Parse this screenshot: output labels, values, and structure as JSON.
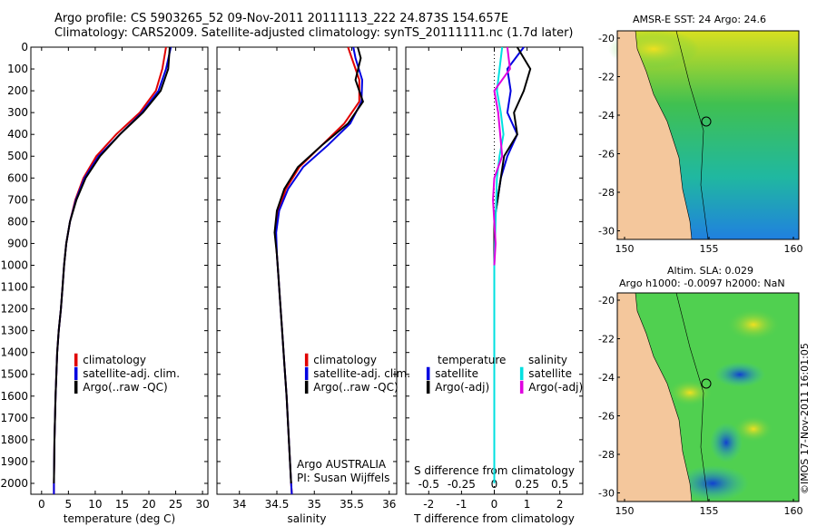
{
  "header": {
    "line1": "Argo profile: CS 5903265_52 09-Nov-2011 20111113_222 24.873S 154.657E",
    "line2": "Climatology: CARS2009. Satellite-adjusted climatology: synTS_20111111.nc (1.7d later)"
  },
  "colors": {
    "climatology": "#e00000",
    "satellite": "#0000e0",
    "argo": "#000000",
    "sal_sat": "#00e0e0",
    "sal_argo": "#e000e0",
    "land": "#f4c79c"
  },
  "legend_main": [
    "climatology",
    "satellite-adj. clim.",
    "Argo(..raw -QC)"
  ],
  "diff_legend": {
    "temperature": "temperature",
    "salinity": "salinity",
    "satellite": "satellite",
    "argo": "Argo(-adj)"
  },
  "credit": {
    "line1": "Argo AUSTRALIA",
    "line2": "PI: Susan Wijffels"
  },
  "maps": {
    "sst_title": "AMSR-E SST: 24 Argo: 24.6",
    "sla_title1": "Altim. SLA: 0.029",
    "sla_title2": "Argo h1000: -0.0097 h2000: NaN",
    "lat_ticks": [
      "-20",
      "-22",
      "-24",
      "-26",
      "-28",
      "-30"
    ],
    "lon_ticks": [
      "150",
      "155",
      "160"
    ]
  },
  "imos": "©IMOS 17-Nov-2011 16:01:05",
  "chart_data": [
    {
      "type": "line",
      "name": "temperature",
      "xlabel": "temperature (deg C)",
      "ylabel": "",
      "xlim": [
        -2,
        31
      ],
      "ylim": [
        2050,
        0
      ],
      "xticks": [
        "0",
        "5",
        "10",
        "15",
        "20",
        "25",
        "30"
      ],
      "yticks": [
        "0",
        "100",
        "200",
        "300",
        "400",
        "500",
        "600",
        "700",
        "800",
        "900",
        "1000",
        "1100",
        "1200",
        "1300",
        "1400",
        "1500",
        "1600",
        "1700",
        "1800",
        "1900",
        "2000"
      ],
      "series": [
        {
          "name": "climatology",
          "x": [
            23.2,
            22.5,
            21.3,
            18.3,
            13.9,
            10.2,
            7.8,
            6.3,
            5.3,
            4.6,
            4.2,
            3.9,
            3.6,
            3.2,
            2.9,
            2.6,
            2.4,
            2.3,
            2.3
          ],
          "y": [
            0,
            100,
            200,
            300,
            400,
            500,
            600,
            700,
            800,
            900,
            1000,
            1100,
            1200,
            1300,
            1400,
            1600,
            1800,
            2000,
            2050
          ]
        },
        {
          "name": "satellite-adj. clim.",
          "x": [
            24.1,
            23.2,
            21.8,
            18.7,
            14.6,
            10.6,
            8.0,
            6.4,
            5.3,
            4.6,
            4.2,
            3.9,
            3.6,
            3.2,
            2.9,
            2.6,
            2.4,
            2.3,
            2.3
          ],
          "y": [
            0,
            100,
            200,
            300,
            400,
            500,
            600,
            700,
            800,
            900,
            1000,
            1100,
            1200,
            1300,
            1400,
            1600,
            1800,
            2000,
            2050
          ]
        },
        {
          "name": "Argo(..raw -QC)",
          "x": [
            23.9,
            23.6,
            22.2,
            18.9,
            14.6,
            10.9,
            8.2,
            6.5,
            5.3,
            4.6,
            4.2,
            3.9,
            3.6,
            3.2,
            2.9,
            2.6,
            2.4,
            2.3
          ],
          "y": [
            0,
            100,
            200,
            300,
            400,
            500,
            600,
            700,
            800,
            900,
            1000,
            1100,
            1200,
            1300,
            1400,
            1600,
            1800,
            2000
          ]
        }
      ]
    },
    {
      "type": "line",
      "name": "salinity",
      "xlabel": "salinity",
      "ylabel": "",
      "xlim": [
        33.7,
        36.1
      ],
      "ylim": [
        2050,
        0
      ],
      "xticks": [
        "34",
        "34.5",
        "35",
        "35.5",
        "36"
      ],
      "series": [
        {
          "name": "climatology",
          "x": [
            35.45,
            35.5,
            35.6,
            35.6,
            35.4,
            35.1,
            34.8,
            34.62,
            34.52,
            34.48,
            34.5,
            34.52,
            34.54,
            34.57,
            34.6,
            34.63,
            34.66,
            34.69,
            34.7
          ],
          "y": [
            0,
            50,
            150,
            250,
            350,
            450,
            550,
            650,
            750,
            850,
            950,
            1050,
            1150,
            1300,
            1450,
            1600,
            1800,
            2000,
            2050
          ]
        },
        {
          "name": "satellite-adj. clim.",
          "x": [
            35.52,
            35.55,
            35.64,
            35.63,
            35.48,
            35.18,
            34.85,
            34.65,
            34.53,
            34.49,
            34.5,
            34.52,
            34.54,
            34.57,
            34.6,
            34.63,
            34.66,
            34.69,
            34.7
          ],
          "y": [
            0,
            50,
            150,
            250,
            350,
            450,
            550,
            650,
            750,
            850,
            950,
            1050,
            1150,
            1300,
            1450,
            1600,
            1800,
            2000,
            2050
          ]
        },
        {
          "name": "Argo(..raw -QC)",
          "x": [
            35.58,
            35.62,
            35.55,
            35.65,
            35.45,
            35.1,
            34.78,
            34.6,
            34.5,
            34.47,
            34.5,
            34.52,
            34.54,
            34.57,
            34.6,
            34.63,
            34.66,
            34.69
          ],
          "y": [
            0,
            50,
            150,
            250,
            350,
            450,
            550,
            650,
            750,
            850,
            950,
            1050,
            1150,
            1300,
            1450,
            1600,
            1800,
            2000
          ]
        }
      ]
    },
    {
      "type": "line",
      "name": "difference",
      "xlabel": "T difference from climatology",
      "xlabel_top": "S difference from climatology",
      "xlim": [
        -2.7,
        2.7
      ],
      "ylim": [
        2050,
        0
      ],
      "xticks": [
        "-2",
        "-1",
        "0",
        "1",
        "2"
      ],
      "xticks_top": [
        "-0.5",
        "-0.25",
        "0",
        "0.25",
        "0.5"
      ],
      "series": [
        {
          "name": "temperature satellite",
          "x": [
            0.9,
            0.4,
            0.5,
            0.4,
            0.7,
            0.4,
            0.2,
            0.1,
            0.0,
            0.0,
            0.0
          ],
          "y": [
            0,
            100,
            200,
            300,
            400,
            500,
            600,
            700,
            800,
            1000,
            2000
          ]
        },
        {
          "name": "temperature Argo(-adj)",
          "x": [
            0.7,
            1.1,
            0.9,
            0.6,
            0.7,
            0.3,
            0.2,
            0.1,
            0.0,
            0.0,
            0.0
          ],
          "y": [
            0,
            100,
            200,
            300,
            400,
            500,
            600,
            700,
            800,
            1000,
            2000
          ]
        },
        {
          "name": "salinity satellite",
          "x": [
            0.06,
            0.04,
            0.02,
            0.05,
            0.07,
            0.04,
            0.02,
            0.01,
            0.0,
            0.0
          ],
          "y": [
            0,
            100,
            200,
            300,
            400,
            500,
            600,
            800,
            1000,
            2000
          ]
        },
        {
          "name": "salinity Argo(-adj)",
          "x": [
            0.1,
            0.12,
            0.0,
            0.03,
            0.06,
            0.0,
            -0.01,
            0.01,
            0.0
          ],
          "y": [
            0,
            100,
            200,
            300,
            500,
            600,
            700,
            900,
            1000
          ]
        }
      ]
    }
  ]
}
